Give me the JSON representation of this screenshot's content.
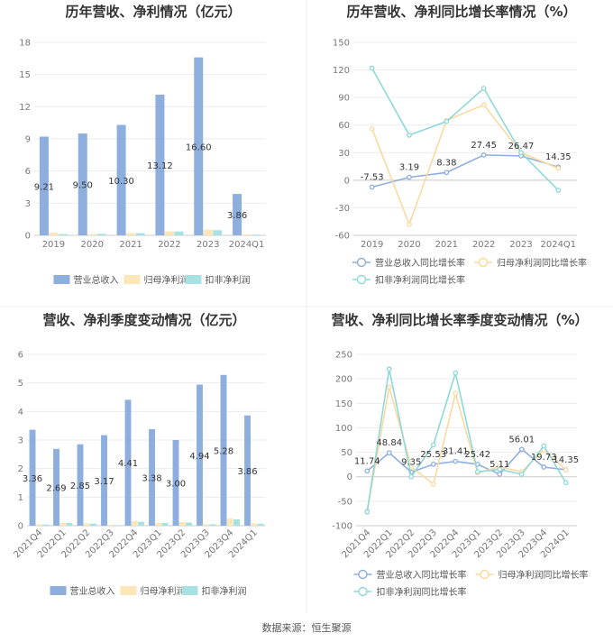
{
  "source": "数据来源：恒生聚源",
  "colors": {
    "revenue": "#8eaedd",
    "net_profit": "#fde6b8",
    "deducted": "#a8e1e2",
    "rev_line": "#8eaedd",
    "np_line": "#fbd9a1",
    "ded_line": "#8fd8da"
  },
  "chart_data": [
    {
      "type": "bar",
      "title": "历年营收、净利情况（亿元）",
      "categories": [
        "2019",
        "2020",
        "2021",
        "2022",
        "2023",
        "2024Q1"
      ],
      "ylim": [
        0,
        18
      ],
      "yticks": [
        0,
        3,
        6,
        9,
        12,
        15,
        18
      ],
      "series": [
        {
          "name": "营业总收入",
          "values": [
            9.21,
            9.5,
            10.3,
            13.12,
            16.6,
            3.86
          ],
          "labels": [
            "9.21",
            "9.50",
            "10.30",
            "13.12",
            "16.60",
            "3.86"
          ]
        },
        {
          "name": "归母净利润",
          "values": [
            0.25,
            0.12,
            0.22,
            0.38,
            0.52,
            0.08
          ]
        },
        {
          "name": "扣非净利润",
          "values": [
            0.12,
            0.14,
            0.2,
            0.36,
            0.48,
            0.07
          ]
        }
      ],
      "legend": "bottom"
    },
    {
      "type": "line",
      "title": "历年营收、净利同比增长率情况（%）",
      "categories": [
        "2019",
        "2020",
        "2021",
        "2022",
        "2023",
        "2024Q1"
      ],
      "ylim": [
        -60,
        150
      ],
      "yticks": [
        -60,
        -30,
        0,
        30,
        60,
        90,
        120,
        150
      ],
      "series": [
        {
          "name": "营业总收入同比增长率",
          "values": [
            -7.53,
            3.19,
            8.38,
            27.45,
            26.47,
            14.35
          ],
          "labels": [
            "-7.53",
            "3.19",
            "8.38",
            "27.45",
            "26.47",
            "14.35"
          ]
        },
        {
          "name": "归母净利润同比增长率",
          "values": [
            56,
            -48,
            65,
            82,
            30,
            13
          ]
        },
        {
          "name": "扣非净利润同比增长率",
          "values": [
            122,
            49,
            64,
            100,
            30,
            -11
          ]
        }
      ],
      "legend": "bottom"
    },
    {
      "type": "bar",
      "title": "营收、净利季度变动情况（亿元）",
      "categories": [
        "2021Q4",
        "2022Q1",
        "2022Q2",
        "2022Q3",
        "2022Q4",
        "2023Q1",
        "2023Q2",
        "2023Q3",
        "2023Q4",
        "2024Q1"
      ],
      "ylim": [
        0,
        6
      ],
      "yticks": [
        0,
        1,
        2,
        3,
        4,
        5,
        6
      ],
      "series": [
        {
          "name": "营业总收入",
          "values": [
            3.36,
            2.69,
            2.85,
            3.17,
            4.41,
            3.38,
            3.0,
            4.94,
            5.28,
            3.86
          ],
          "labels": [
            "3.36",
            "2.69",
            "2.85",
            "3.17",
            "4.41",
            "3.38",
            "3.00",
            "4.94",
            "5.28",
            "3.86"
          ]
        },
        {
          "name": "归母净利润",
          "values": [
            0.05,
            0.1,
            0.08,
            0.03,
            0.17,
            0.1,
            0.13,
            0.05,
            0.25,
            0.08
          ]
        },
        {
          "name": "扣非净利润",
          "values": [
            0.04,
            0.1,
            0.07,
            0.02,
            0.14,
            0.1,
            0.11,
            0.05,
            0.22,
            0.07
          ]
        }
      ],
      "legend": "bottom"
    },
    {
      "type": "line",
      "title": "营收、净利同比增长率季度变动情况（%）",
      "categories": [
        "2021Q4",
        "2022Q1",
        "2022Q2",
        "2022Q3",
        "2022Q4",
        "2023Q1",
        "2023Q2",
        "2023Q3",
        "2023Q4",
        "2024Q1"
      ],
      "ylim": [
        -100,
        250
      ],
      "yticks": [
        -100,
        -50,
        0,
        50,
        100,
        150,
        200,
        250
      ],
      "series": [
        {
          "name": "营业总收入同比增长率",
          "values": [
            11.74,
            48.84,
            9.35,
            25.53,
            31.41,
            25.42,
            5.11,
            56.01,
            19.73,
            14.35
          ],
          "labels": [
            "11.74",
            "48.84",
            "9.35",
            "25.53",
            "31.41",
            "25.42",
            "5.11",
            "56.01",
            "19.73",
            "14.35"
          ]
        },
        {
          "name": "归母净利润同比增长率",
          "values": [
            -70,
            183,
            20,
            -15,
            170,
            8,
            20,
            10,
            55,
            14
          ]
        },
        {
          "name": "扣非净利润同比增长率",
          "values": [
            -72,
            220,
            0,
            65,
            212,
            10,
            15,
            5,
            63,
            -12
          ]
        }
      ],
      "legend": "bottom"
    }
  ]
}
